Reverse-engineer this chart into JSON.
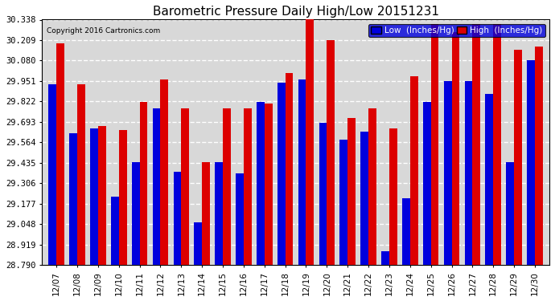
{
  "title": "Barometric Pressure Daily High/Low 20151231",
  "copyright": "Copyright 2016 Cartronics.com",
  "dates": [
    "12/07",
    "12/08",
    "12/09",
    "12/10",
    "12/11",
    "12/12",
    "12/13",
    "12/14",
    "12/15",
    "12/16",
    "12/17",
    "12/18",
    "12/19",
    "12/20",
    "12/21",
    "12/22",
    "12/23",
    "12/24",
    "12/25",
    "12/26",
    "12/27",
    "12/28",
    "12/29",
    "12/30"
  ],
  "low": [
    29.93,
    29.62,
    29.65,
    29.22,
    29.44,
    29.78,
    29.38,
    29.06,
    29.44,
    29.37,
    29.82,
    29.94,
    29.96,
    29.69,
    29.58,
    29.63,
    28.88,
    29.21,
    29.82,
    29.95,
    29.95,
    29.87,
    29.44,
    30.08
  ],
  "high": [
    30.19,
    29.93,
    29.67,
    29.64,
    29.82,
    29.96,
    29.78,
    29.44,
    29.78,
    29.78,
    29.81,
    30.0,
    30.34,
    30.21,
    29.72,
    29.78,
    29.65,
    29.98,
    30.31,
    30.26,
    30.31,
    30.31,
    30.15,
    30.17
  ],
  "ylim_min": 28.79,
  "ylim_max": 30.338,
  "yticks": [
    28.79,
    28.919,
    29.048,
    29.177,
    29.306,
    29.435,
    29.564,
    29.693,
    29.822,
    29.951,
    30.08,
    30.209,
    30.338
  ],
  "low_color": "#0000dd",
  "high_color": "#dd0000",
  "bg_color": "#ffffff",
  "plot_bg_color": "#d8d8d8",
  "grid_color": "#ffffff",
  "legend_low_label": "Low  (Inches/Hg)",
  "legend_high_label": "High  (Inches/Hg)"
}
